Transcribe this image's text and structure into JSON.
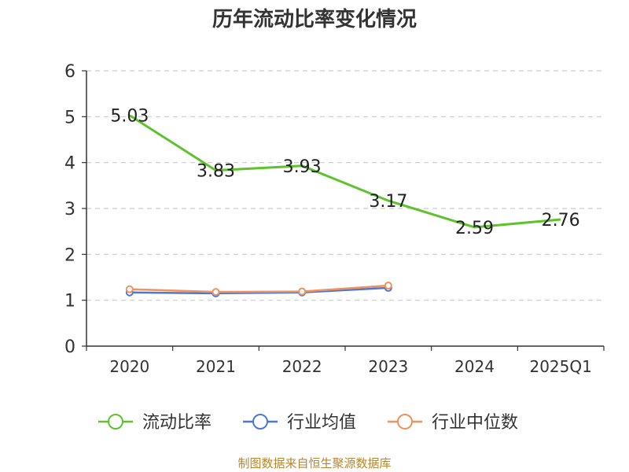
{
  "chart_data": {
    "type": "line",
    "title": "历年流动比率变化情况",
    "categories": [
      "2020",
      "2021",
      "2022",
      "2023",
      "2024",
      "2025Q1"
    ],
    "ylim": [
      0,
      6
    ],
    "yticks": [
      0,
      1,
      2,
      3,
      4,
      5,
      6
    ],
    "grid": true,
    "legend_position": "bottom",
    "series": [
      {
        "name": "流动比率",
        "color": "#5ec22b",
        "values": [
          5.03,
          3.83,
          3.93,
          3.17,
          2.59,
          2.76
        ],
        "labels": [
          "5.03",
          "3.83",
          "3.93",
          "3.17",
          "2.59",
          "2.76"
        ]
      },
      {
        "name": "行业均值",
        "color": "#4a78d4",
        "values": [
          1.17,
          1.15,
          1.17,
          1.27,
          null,
          null
        ]
      },
      {
        "name": "行业中位数",
        "color": "#f0915e",
        "values": [
          1.24,
          1.18,
          1.19,
          1.32,
          null,
          null
        ]
      }
    ]
  },
  "footer": {
    "source": "制图数据来自恒生聚源数据库"
  }
}
